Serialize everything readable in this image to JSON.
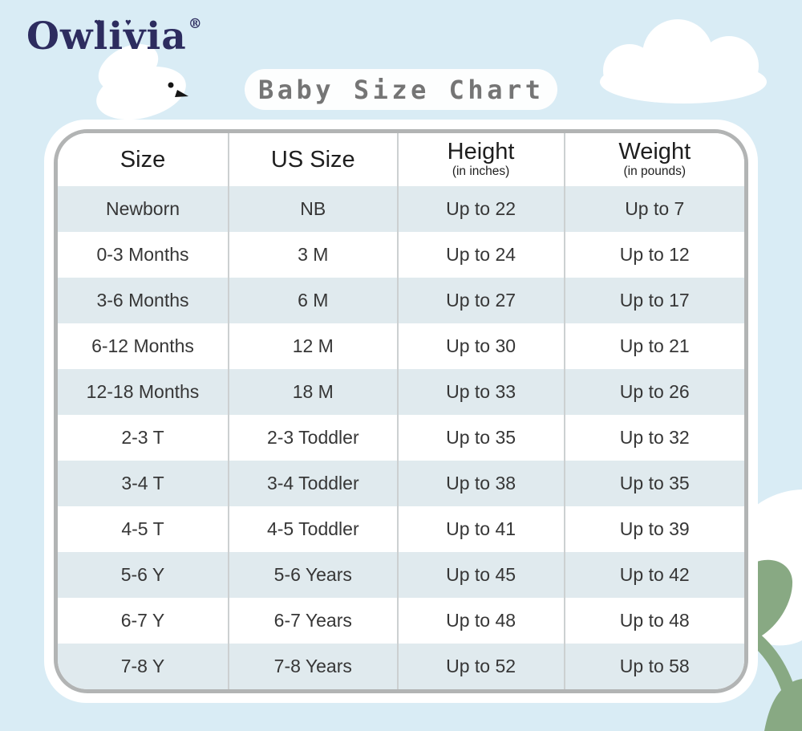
{
  "brand": {
    "name": "Owlivia",
    "registered_mark": "®"
  },
  "title": "Baby Size Chart",
  "chart_data": {
    "type": "table",
    "title": "Baby Size Chart",
    "columns": [
      {
        "label": "Size",
        "sublabel": ""
      },
      {
        "label": "US Size",
        "sublabel": ""
      },
      {
        "label": "Height",
        "sublabel": "(in inches)"
      },
      {
        "label": "Weight",
        "sublabel": "(in pounds)"
      }
    ],
    "rows": [
      [
        "Newborn",
        "NB",
        "Up to 22",
        "Up to 7"
      ],
      [
        "0-3 Months",
        "3 M",
        "Up to 24",
        "Up to 12"
      ],
      [
        "3-6 Months",
        "6 M",
        "Up to 27",
        "Up to 17"
      ],
      [
        "6-12 Months",
        "12 M",
        "Up to 30",
        "Up to 21"
      ],
      [
        "12-18 Months",
        "18 M",
        "Up to 33",
        "Up to 26"
      ],
      [
        "2-3 T",
        "2-3 Toddler",
        "Up to 35",
        "Up to 32"
      ],
      [
        "3-4 T",
        "3-4 Toddler",
        "Up to 38",
        "Up to 35"
      ],
      [
        "4-5 T",
        "4-5 Toddler",
        "Up to 41",
        "Up to 39"
      ],
      [
        "5-6 Y",
        "5-6 Years",
        "Up to 45",
        "Up to 42"
      ],
      [
        "6-7 Y",
        "6-7 Years",
        "Up to 48",
        "Up to 48"
      ],
      [
        "7-8 Y",
        "7-8 Years",
        "Up to 52",
        "Up to 58"
      ]
    ],
    "layout": {
      "striped": true,
      "first_data_row_shaded": true,
      "grid": "vertical-dividers-only"
    }
  },
  "decorations": {
    "heart_glyph": "♥",
    "icons": [
      "dove-icon",
      "cloud-icon",
      "cotton-plant-icon"
    ]
  },
  "colors": {
    "background": "#d9ecf5",
    "brand_navy": "#2d2c5f",
    "title_gray": "#757575",
    "table_border_gray": "#b2b4b4",
    "row_shade_blue": "#e0eaee",
    "divider_gray": "#ccd0d1",
    "cell_text": "#363636",
    "leaf_green": "#88a983",
    "cotton_shade": "#dcecf2",
    "white": "#ffffff"
  }
}
